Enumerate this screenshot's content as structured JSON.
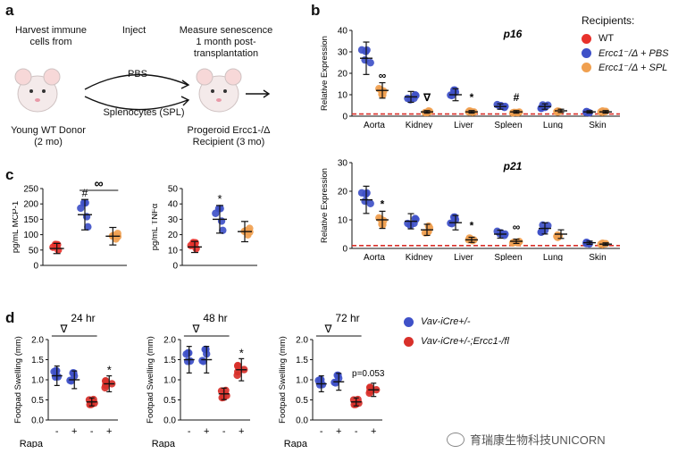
{
  "panel_a": {
    "letter": "a",
    "step1": "Harvest immune\ncells from",
    "step2": "Inject",
    "step3": "Measure senescence\n1 month post-\ntransplantation",
    "pbs": "PBS",
    "spl": "Splenocytes (SPL)",
    "donor": "Young WT Donor\n(2 mo)",
    "recipient_line1": "Progeroid Ercc1-/Δ",
    "recipient_line2": "Recipient (3 mo)"
  },
  "panel_b_letter": "b",
  "panel_c_letter": "c",
  "panel_d_letter": "d",
  "legend_b": {
    "title": "Recipients:",
    "items": [
      {
        "label": "WT",
        "color": "#e8322c"
      },
      {
        "label": "Ercc1⁻/Δ + PBS",
        "color": "#3f51c8"
      },
      {
        "label": "Ercc1⁻/Δ + SPL",
        "color": "#f0a050"
      }
    ]
  },
  "legend_d": {
    "items": [
      {
        "label": "Vav-iCre+/-",
        "color": "#3f51c8"
      },
      {
        "label": "Vav-iCre+/-;Ercc1-/fl",
        "color": "#d8302a"
      }
    ]
  },
  "watermark": "育瑞康生物科技UNICORN",
  "chart_data": [
    {
      "id": "p16",
      "type": "scatter",
      "title": "p16",
      "ylabel": "Relative Expression",
      "ylim": [
        0,
        40
      ],
      "yticks": [
        "0",
        "10",
        "20",
        "30",
        "40"
      ],
      "categories": [
        "Aorta",
        "Kidney",
        "Liver",
        "Spleen",
        "Lung",
        "Skin"
      ],
      "wt_baseline": 1,
      "series": [
        {
          "name": "Ercc1-/Δ + PBS",
          "color": "#3f51c8",
          "means": [
            27,
            9,
            10,
            4.5,
            4.5,
            2
          ]
        },
        {
          "name": "Ercc1-/Δ + SPL",
          "color": "#f0a050",
          "means": [
            12,
            2,
            2,
            2,
            2.5,
            2
          ]
        }
      ],
      "annotations": [
        "∞",
        "∇",
        "*",
        "#",
        "",
        ""
      ]
    },
    {
      "id": "p21",
      "type": "scatter",
      "title": "p21",
      "ylabel": "Relative Expression",
      "ylim": [
        0,
        30
      ],
      "yticks": [
        "0",
        "10",
        "20",
        "30"
      ],
      "categories": [
        "Aorta",
        "Kidney",
        "Liver",
        "Spleen",
        "Lung",
        "Skin"
      ],
      "wt_baseline": 1,
      "series": [
        {
          "name": "Ercc1-/Δ + PBS",
          "color": "#3f51c8",
          "means": [
            17,
            9.5,
            9,
            5,
            7,
            2
          ]
        },
        {
          "name": "Ercc1-/Δ + SPL",
          "color": "#f0a050",
          "means": [
            10,
            6.5,
            3,
            2.5,
            5,
            1.5
          ]
        }
      ],
      "annotations": [
        "*",
        "",
        "*",
        "∞",
        "",
        ""
      ]
    },
    {
      "id": "mcp1",
      "type": "scatter",
      "ylabel": "pg/mL MCP-1",
      "ylim": [
        0,
        250
      ],
      "yticks": [
        "0",
        "50",
        "100",
        "150",
        "200",
        "250"
      ],
      "groups": [
        {
          "name": "WT",
          "color": "#e8322c",
          "mean": 55
        },
        {
          "name": "Ercc1-/Δ + PBS",
          "color": "#3f51c8",
          "mean": 165
        },
        {
          "name": "Ercc1-/Δ + SPL",
          "color": "#f0a050",
          "mean": 95
        }
      ],
      "annotations": [
        "#",
        "∞"
      ]
    },
    {
      "id": "tnfa",
      "type": "scatter",
      "ylabel": "pg/mL TNFα",
      "ylim": [
        0,
        50
      ],
      "yticks": [
        "0",
        "10",
        "20",
        "30",
        "40",
        "50"
      ],
      "groups": [
        {
          "name": "WT",
          "color": "#e8322c",
          "mean": 12
        },
        {
          "name": "Ercc1-/Δ + PBS",
          "color": "#3f51c8",
          "mean": 30
        },
        {
          "name": "Ercc1-/Δ + SPL",
          "color": "#f0a050",
          "mean": 22
        }
      ],
      "annotations": [
        "*"
      ]
    },
    {
      "id": "fs24",
      "type": "scatter",
      "title": "24 hr",
      "ylabel": "Footpad Swelling (mm)",
      "ylim": [
        0,
        2.0
      ],
      "yticks": [
        "0.0",
        "0.5",
        "1.0",
        "1.5",
        "2.0"
      ],
      "xlabel": "Rapa",
      "rapa": [
        "-",
        "+",
        "-",
        "+"
      ],
      "means": [
        1.1,
        1.0,
        0.45,
        0.9
      ],
      "colors": [
        "#3f51c8",
        "#3f51c8",
        "#d8302a",
        "#d8302a"
      ],
      "annotations": [
        "∇",
        "*"
      ]
    },
    {
      "id": "fs48",
      "type": "scatter",
      "title": "48 hr",
      "ylabel": "Footpad Swelling (mm)",
      "ylim": [
        0,
        2.0
      ],
      "yticks": [
        "0.0",
        "0.5",
        "1.0",
        "1.5",
        "2.0"
      ],
      "xlabel": "Rapa",
      "rapa": [
        "-",
        "+",
        "-",
        "+"
      ],
      "means": [
        1.5,
        1.5,
        0.65,
        1.25
      ],
      "colors": [
        "#3f51c8",
        "#3f51c8",
        "#d8302a",
        "#d8302a"
      ],
      "annotations": [
        "∇",
        "*"
      ]
    },
    {
      "id": "fs72",
      "type": "scatter",
      "title": "72 hr",
      "ylabel": "Footpad Swelling (mm)",
      "ylim": [
        0,
        2.0
      ],
      "yticks": [
        "0.0",
        "0.5",
        "1.0",
        "1.5",
        "2.0"
      ],
      "xlabel": "Rapa",
      "rapa": [
        "-",
        "+",
        "-",
        "+"
      ],
      "means": [
        0.9,
        0.95,
        0.45,
        0.75
      ],
      "colors": [
        "#3f51c8",
        "#3f51c8",
        "#d8302a",
        "#d8302a"
      ],
      "annotations": [
        "∇",
        "p=0.053"
      ]
    }
  ]
}
